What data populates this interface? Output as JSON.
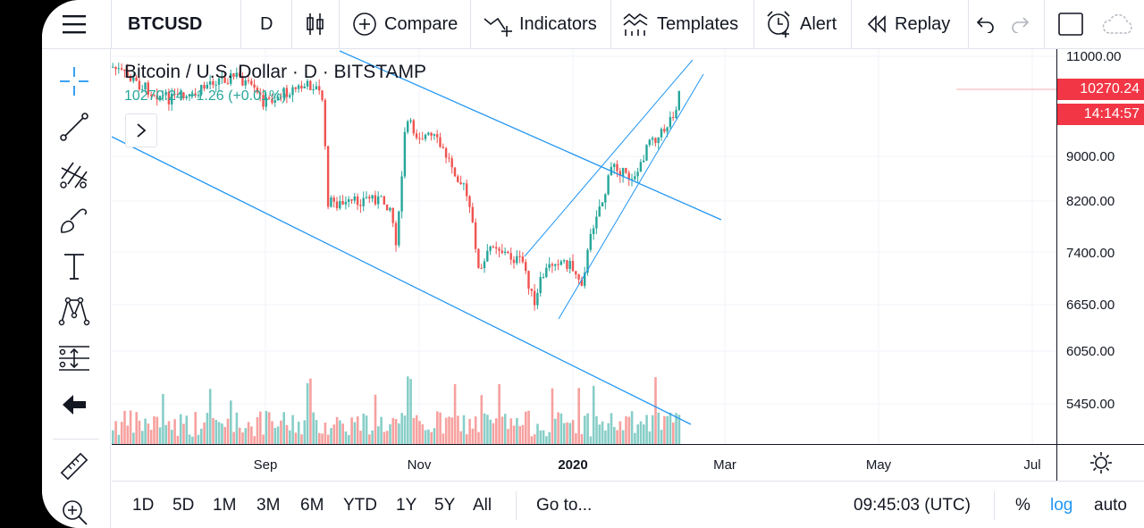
{
  "toolbar": {
    "symbol": "BTCUSD",
    "interval": "D",
    "compare": "Compare",
    "indicators": "Indicators",
    "templates": "Templates",
    "alert": "Alert",
    "replay": "Replay"
  },
  "legend": {
    "title": "Bitcoin / U.S. Dollar · D · BITSTAMP",
    "values": "10270.24 +1.26 (+0.01%)"
  },
  "price_scale": {
    "labels": [
      "11000.00",
      "9000.00",
      "8200.00",
      "7400.00",
      "6650.00",
      "6050.00",
      "5450.00"
    ],
    "current_price": "10270.24",
    "countdown": "14:14:57"
  },
  "time_scale": {
    "labels": [
      "Sep",
      "Nov",
      "2020",
      "Mar",
      "May",
      "Jul"
    ]
  },
  "bottom_bar": {
    "ranges": [
      "1D",
      "5D",
      "1M",
      "3M",
      "6M",
      "YTD",
      "1Y",
      "5Y",
      "All"
    ],
    "goto": "Go to...",
    "time": "09:45:03 (UTC)",
    "percent": "%",
    "log": "log",
    "auto": "auto"
  },
  "colors": {
    "up": "#26a69a",
    "down": "#ef5350",
    "trendline": "#2196f3",
    "price_tag": "#f23645",
    "log_active": "#2196f3"
  },
  "left_tools": [
    "crosshair-icon",
    "trendline-icon",
    "pitchfork-icon",
    "brush-icon",
    "text-icon",
    "pattern-icon",
    "prediction-icon",
    "back-arrow-icon",
    "ruler-icon",
    "zoom-in-icon"
  ]
}
